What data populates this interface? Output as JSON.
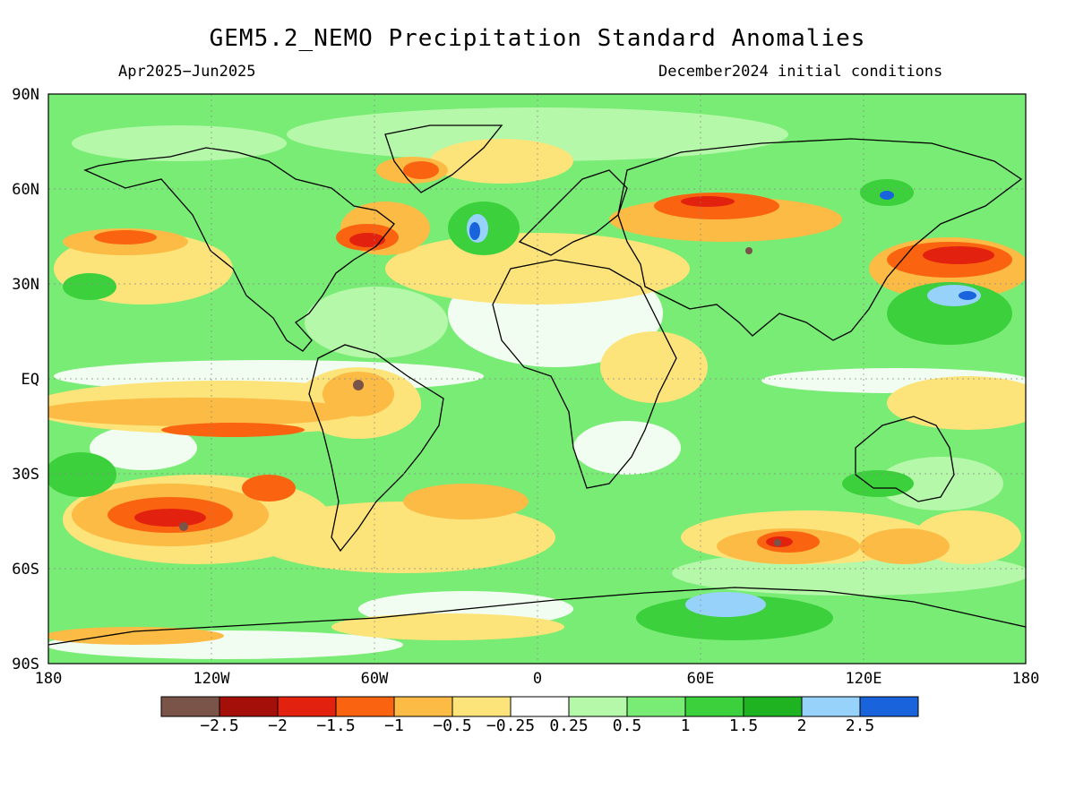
{
  "header": {
    "title": "GEM5.2_NEMO Precipitation Standard Anomalies",
    "period": "Apr2025−Jun2025",
    "init": "December2024 initial conditions"
  },
  "axes": {
    "lat_labels": [
      "90N",
      "60N",
      "30N",
      "EQ",
      "30S",
      "60S",
      "90S"
    ],
    "lon_labels": [
      "180",
      "120W",
      "60W",
      "0",
      "60E",
      "120E",
      "180"
    ]
  },
  "colorbar": {
    "colors": [
      "#7a5449",
      "#a50f0a",
      "#e3210f",
      "#fa6411",
      "#fbbb45",
      "#fde47a",
      "#ffffff",
      "#b5f8a9",
      "#79ec75",
      "#3cd13c",
      "#1fb322",
      "#96d2fa",
      "#1964dc"
    ],
    "labels": [
      "−2.5",
      "−2",
      "−1.5",
      "−1",
      "−0.5",
      "−0.25",
      "0.25",
      "0.5",
      "1",
      "1.5",
      "2",
      "2.5"
    ]
  },
  "map": {
    "background": "#79ec75"
  }
}
